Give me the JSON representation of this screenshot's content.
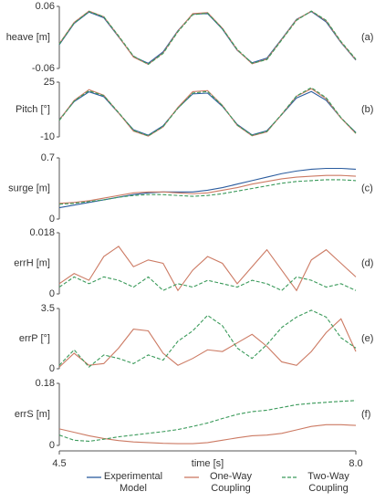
{
  "chart_data": [
    {
      "type": "line",
      "ylabel": "heave [m]",
      "panel": "(a)",
      "x": [
        4.5,
        4.675,
        4.85,
        5.025,
        5.2,
        5.375,
        5.55,
        5.725,
        5.9,
        6.075,
        6.25,
        6.425,
        6.6,
        6.775,
        6.95,
        7.125,
        7.3,
        7.475,
        7.65,
        7.825,
        8.0
      ],
      "xlim": [
        4.5,
        8.0
      ],
      "ylim": [
        -0.06,
        0.06
      ],
      "yticks": [
        -0.06,
        0.06
      ],
      "series": [
        {
          "name": "Experimental Model",
          "color": "#2b5c9e",
          "style": "solid",
          "values": [
            -0.014,
            0.027,
            0.049,
            0.038,
            0.001,
            -0.037,
            -0.05,
            -0.028,
            0.013,
            0.045,
            0.046,
            0.016,
            -0.025,
            -0.049,
            -0.04,
            -0.003,
            0.035,
            0.05,
            0.03,
            -0.01,
            -0.044
          ]
        },
        {
          "name": "One-Way Coupling",
          "color": "#cc7a63",
          "style": "solid",
          "values": [
            -0.012,
            0.029,
            0.051,
            0.04,
            0.002,
            -0.038,
            -0.052,
            -0.03,
            0.012,
            0.046,
            0.048,
            0.018,
            -0.024,
            -0.051,
            -0.042,
            -0.004,
            0.034,
            0.051,
            0.032,
            -0.009,
            -0.043
          ]
        },
        {
          "name": "Two-Way Coupling",
          "color": "#3a9a5a",
          "style": "dashed",
          "values": [
            -0.013,
            0.028,
            0.05,
            0.04,
            0.003,
            -0.036,
            -0.052,
            -0.031,
            0.011,
            0.044,
            0.047,
            0.017,
            -0.023,
            -0.05,
            -0.043,
            -0.005,
            0.033,
            0.051,
            0.033,
            -0.008,
            -0.042
          ]
        }
      ]
    },
    {
      "type": "line",
      "ylabel": "Pitch [°]",
      "panel": "(b)",
      "x": [
        4.5,
        4.675,
        4.85,
        5.025,
        5.2,
        5.375,
        5.55,
        5.725,
        5.9,
        6.075,
        6.25,
        6.425,
        6.6,
        6.775,
        6.95,
        7.125,
        7.3,
        7.475,
        7.65,
        7.825,
        8.0
      ],
      "xlim": [
        4.5,
        8.0
      ],
      "ylim": [
        -10,
        25
      ],
      "yticks": [
        -10,
        25
      ],
      "series": [
        {
          "color": "#2b5c9e",
          "style": "solid",
          "values": [
            1.1,
            12.6,
            18.8,
            15.7,
            5.2,
            -5.4,
            -8.9,
            -2.9,
            8.5,
            17.5,
            18.0,
            9.5,
            -2.0,
            -8.7,
            -6.1,
            4.2,
            14.9,
            19.0,
            13.4,
            2.1,
            -7.2
          ]
        },
        {
          "color": "#cc7a63",
          "style": "solid",
          "values": [
            0.8,
            13.3,
            20.2,
            16.6,
            5.3,
            -6.3,
            -9.5,
            -3.6,
            8.9,
            18.9,
            19.6,
            10.1,
            -2.6,
            -9.3,
            -6.8,
            4.4,
            16.0,
            20.8,
            14.4,
            2.0,
            -7.8
          ]
        },
        {
          "color": "#3a9a5a",
          "style": "dashed",
          "values": [
            0.5,
            12.9,
            19.5,
            16.3,
            5.6,
            -5.8,
            -9.3,
            -3.4,
            8.3,
            18.0,
            19.0,
            10.0,
            -2.4,
            -9.0,
            -6.5,
            4.5,
            16.2,
            21.5,
            15.0,
            2.3,
            -7.5
          ]
        }
      ]
    },
    {
      "type": "line",
      "ylabel": "surge [m]",
      "panel": "(c)",
      "x": [
        4.5,
        4.675,
        4.85,
        5.025,
        5.2,
        5.375,
        5.55,
        5.725,
        5.9,
        6.075,
        6.25,
        6.425,
        6.6,
        6.775,
        6.95,
        7.125,
        7.3,
        7.475,
        7.65,
        7.825,
        8.0
      ],
      "xlim": [
        4.5,
        8.0
      ],
      "ylim": [
        0,
        0.7
      ],
      "yticks": [
        0,
        0.7
      ],
      "series": [
        {
          "color": "#2b5c9e",
          "style": "solid",
          "values": [
            0.13,
            0.16,
            0.19,
            0.22,
            0.25,
            0.28,
            0.3,
            0.31,
            0.31,
            0.31,
            0.33,
            0.36,
            0.4,
            0.44,
            0.48,
            0.52,
            0.55,
            0.57,
            0.58,
            0.58,
            0.57
          ]
        },
        {
          "color": "#cc7a63",
          "style": "solid",
          "values": [
            0.18,
            0.19,
            0.21,
            0.24,
            0.27,
            0.3,
            0.31,
            0.31,
            0.3,
            0.29,
            0.3,
            0.33,
            0.36,
            0.4,
            0.43,
            0.46,
            0.48,
            0.49,
            0.5,
            0.5,
            0.49
          ]
        },
        {
          "color": "#3a9a5a",
          "style": "dashed",
          "values": [
            0.17,
            0.18,
            0.2,
            0.22,
            0.25,
            0.27,
            0.28,
            0.28,
            0.27,
            0.26,
            0.27,
            0.29,
            0.32,
            0.35,
            0.38,
            0.41,
            0.43,
            0.44,
            0.45,
            0.45,
            0.44
          ]
        }
      ]
    },
    {
      "type": "line",
      "ylabel": "errH [m]",
      "panel": "(d)",
      "x": [
        4.5,
        4.675,
        4.85,
        5.025,
        5.2,
        5.375,
        5.55,
        5.725,
        5.9,
        6.075,
        6.25,
        6.425,
        6.6,
        6.775,
        6.95,
        7.125,
        7.3,
        7.475,
        7.65,
        7.825,
        8.0
      ],
      "xlim": [
        4.5,
        8.0
      ],
      "ylim": [
        0,
        0.018
      ],
      "yticks": [
        0,
        0.018
      ],
      "series": [
        {
          "color": "#cc7a63",
          "style": "solid",
          "values": [
            0.003,
            0.006,
            0.004,
            0.011,
            0.014,
            0.008,
            0.01,
            0.009,
            0.001,
            0.007,
            0.011,
            0.009,
            0.003,
            0.008,
            0.013,
            0.007,
            0.001,
            0.01,
            0.013,
            0.009,
            0.005
          ]
        },
        {
          "color": "#3a9a5a",
          "style": "dashed",
          "values": [
            0.002,
            0.005,
            0.003,
            0.005,
            0.004,
            0.002,
            0.005,
            0.001,
            0.003,
            0.002,
            0.004,
            0.003,
            0.002,
            0.004,
            0.003,
            0.001,
            0.005,
            0.004,
            0.002,
            0.003,
            0.001
          ]
        }
      ]
    },
    {
      "type": "line",
      "ylabel": "errP [°]",
      "panel": "(e)",
      "x": [
        4.5,
        4.675,
        4.85,
        5.025,
        5.2,
        5.375,
        5.55,
        5.725,
        5.9,
        6.075,
        6.25,
        6.425,
        6.6,
        6.775,
        6.95,
        7.125,
        7.3,
        7.475,
        7.65,
        7.825,
        8.0
      ],
      "xlim": [
        4.5,
        8.0
      ],
      "ylim": [
        0,
        3.5
      ],
      "yticks": [
        0,
        3.5
      ],
      "series": [
        {
          "color": "#cc7a63",
          "style": "solid",
          "values": [
            0.1,
            0.9,
            0.2,
            0.3,
            1.2,
            2.3,
            2.2,
            0.9,
            0.2,
            0.6,
            1.1,
            1.0,
            1.5,
            2.0,
            1.3,
            0.4,
            0.2,
            1.0,
            2.1,
            2.9,
            1.0
          ]
        },
        {
          "color": "#3a9a5a",
          "style": "dashed",
          "values": [
            0.2,
            1.1,
            0.1,
            0.8,
            0.6,
            0.3,
            0.8,
            0.5,
            1.6,
            2.2,
            3.1,
            2.5,
            1.2,
            0.6,
            1.4,
            2.4,
            3.0,
            3.4,
            3.0,
            1.8,
            1.2
          ]
        }
      ]
    },
    {
      "type": "line",
      "ylabel": "errS [m]",
      "panel": "(f)",
      "xlabel": "time [s]",
      "x": [
        4.5,
        4.675,
        4.85,
        5.025,
        5.2,
        5.375,
        5.55,
        5.725,
        5.9,
        6.075,
        6.25,
        6.425,
        6.6,
        6.775,
        6.95,
        7.125,
        7.3,
        7.475,
        7.65,
        7.825,
        8.0
      ],
      "xlim": [
        4.5,
        8.0
      ],
      "xticks": [
        4.5,
        {
          "value": 8,
          "label": "8.0"
        }
      ],
      "ylim": [
        0,
        0.18
      ],
      "yticks": [
        0,
        0.18
      ],
      "series": [
        {
          "color": "#cc7a63",
          "style": "solid",
          "values": [
            0.048,
            0.038,
            0.028,
            0.02,
            0.014,
            0.01,
            0.008,
            0.006,
            0.005,
            0.005,
            0.008,
            0.015,
            0.022,
            0.028,
            0.03,
            0.035,
            0.045,
            0.055,
            0.06,
            0.06,
            0.058
          ]
        },
        {
          "color": "#3a9a5a",
          "style": "dashed",
          "values": [
            0.03,
            0.015,
            0.012,
            0.018,
            0.025,
            0.03,
            0.035,
            0.04,
            0.046,
            0.055,
            0.065,
            0.078,
            0.09,
            0.098,
            0.102,
            0.11,
            0.118,
            0.122,
            0.125,
            0.128,
            0.13
          ]
        }
      ]
    }
  ]
}
